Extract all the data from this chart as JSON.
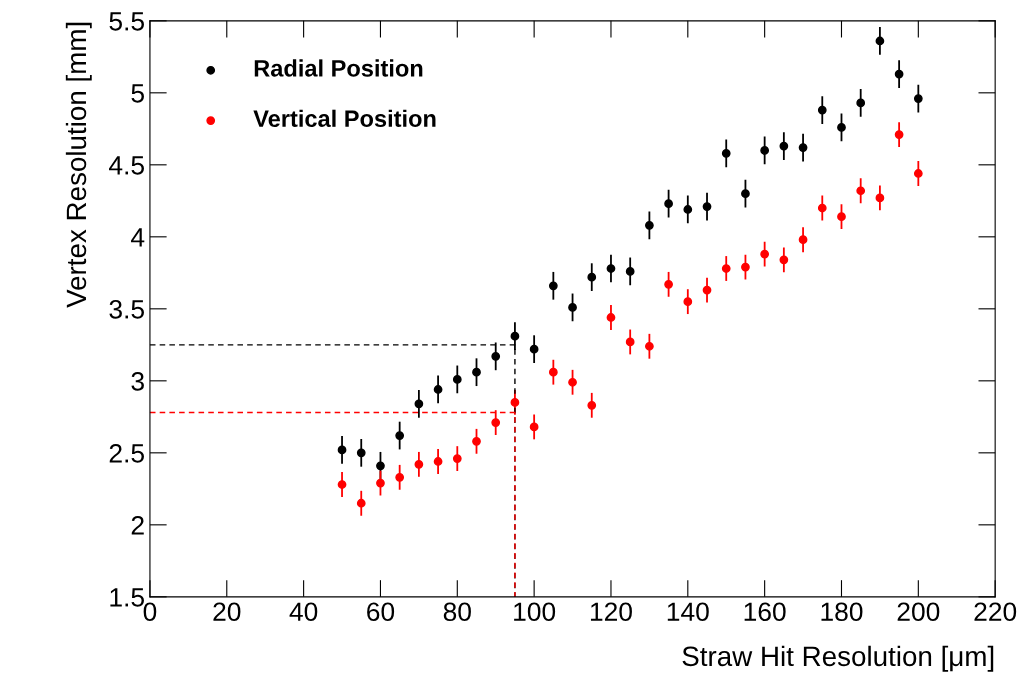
{
  "chart_data": {
    "type": "scatter",
    "xlabel": "Straw Hit Resolution [μm]",
    "ylabel": "Vertex Resolution [mm]",
    "xlim": [
      0,
      220
    ],
    "ylim": [
      1.5,
      5.5
    ],
    "xticks": [
      0,
      20,
      40,
      60,
      80,
      100,
      120,
      140,
      160,
      180,
      200,
      220
    ],
    "yticks": [
      1.5,
      2,
      2.5,
      3,
      3.5,
      4,
      4.5,
      5,
      5.5
    ],
    "grid": false,
    "legend": "top left",
    "marker": "circle",
    "series": [
      {
        "name": "Radial Position",
        "color": "#000000",
        "x": [
          50,
          55,
          60,
          65,
          70,
          75,
          80,
          85,
          90,
          95,
          100,
          105,
          110,
          115,
          120,
          125,
          130,
          135,
          140,
          145,
          150,
          155,
          160,
          165,
          170,
          175,
          180,
          185,
          190,
          195,
          200
        ],
        "values": [
          2.52,
          2.5,
          2.41,
          2.62,
          2.84,
          2.94,
          3.01,
          3.06,
          3.17,
          3.31,
          3.22,
          3.66,
          3.51,
          3.72,
          3.78,
          3.76,
          4.08,
          4.23,
          4.19,
          4.21,
          4.58,
          4.3,
          4.6,
          4.63,
          4.62,
          4.88,
          4.76,
          4.93,
          5.36,
          5.13,
          4.96
        ],
        "errors": [
          0.09,
          0.09,
          0.09,
          0.09,
          0.09,
          0.09,
          0.09,
          0.09,
          0.09,
          0.09,
          0.09,
          0.09,
          0.09,
          0.09,
          0.09,
          0.09,
          0.09,
          0.09,
          0.09,
          0.09,
          0.09,
          0.09,
          0.09,
          0.09,
          0.09,
          0.09,
          0.09,
          0.09,
          0.09,
          0.09,
          0.09
        ]
      },
      {
        "name": "Vertical Position",
        "color": "#ff0000",
        "x": [
          50,
          55,
          60,
          65,
          70,
          75,
          80,
          85,
          90,
          95,
          100,
          105,
          110,
          115,
          120,
          125,
          130,
          135,
          140,
          145,
          150,
          155,
          160,
          165,
          170,
          175,
          180,
          185,
          190,
          195,
          200
        ],
        "values": [
          2.28,
          2.15,
          2.29,
          2.33,
          2.42,
          2.44,
          2.46,
          2.58,
          2.71,
          2.85,
          2.68,
          3.06,
          2.99,
          2.83,
          3.44,
          3.27,
          3.24,
          3.67,
          3.55,
          3.63,
          3.78,
          3.79,
          3.88,
          3.84,
          3.98,
          4.2,
          4.14,
          4.32,
          4.27,
          4.71,
          4.44
        ],
        "errors": [
          0.08,
          0.08,
          0.08,
          0.08,
          0.08,
          0.08,
          0.08,
          0.08,
          0.08,
          0.08,
          0.08,
          0.08,
          0.08,
          0.08,
          0.08,
          0.08,
          0.08,
          0.08,
          0.08,
          0.08,
          0.08,
          0.08,
          0.08,
          0.08,
          0.08,
          0.08,
          0.08,
          0.08,
          0.08,
          0.08,
          0.08
        ]
      },
      {
        "type": "line",
        "color": "#000000",
        "line_style": "dashed",
        "marker": "none",
        "x": [
          0,
          95,
          95
        ],
        "values": [
          3.25,
          3.25,
          1.5
        ]
      },
      {
        "type": "line",
        "color": "#ff0000",
        "line_style": "dashed",
        "marker": "none",
        "x": [
          0,
          95,
          95
        ],
        "values": [
          2.78,
          2.78,
          1.5
        ]
      }
    ]
  }
}
